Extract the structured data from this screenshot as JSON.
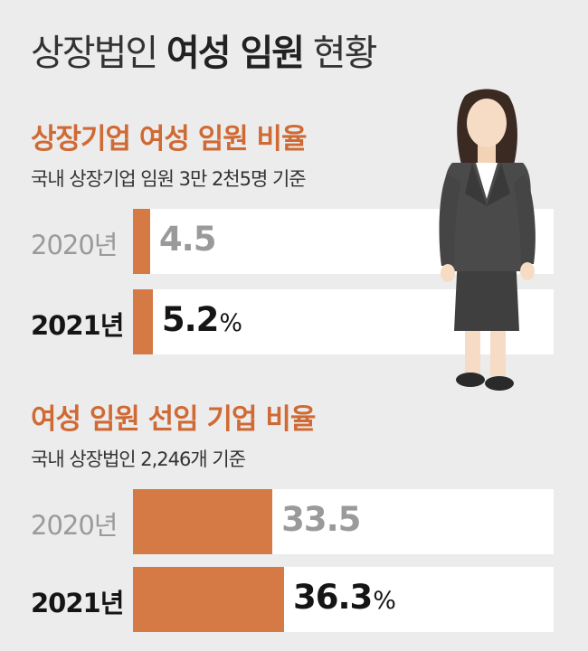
{
  "header": {
    "title_plain1": "상장법인 ",
    "title_bold": "여성 임원",
    "title_plain2": " 현황"
  },
  "chart_data": [
    {
      "type": "bar",
      "title": "상장기업 여성 임원 비율",
      "subtitle": "국내 상장기업 임원 3만 2천5명 기준",
      "categories": [
        "2020년",
        "2021년"
      ],
      "values": [
        4.5,
        5.2
      ],
      "value_labels": [
        "4.5",
        "5.2"
      ],
      "unit_labels": [
        "",
        "%"
      ],
      "xlim": [
        0,
        100
      ],
      "orientation": "horizontal"
    },
    {
      "type": "bar",
      "title": "여성 임원 선임 기업 비율",
      "subtitle": "국내 상장법인 2,246개 기준",
      "categories": [
        "2020년",
        "2021년"
      ],
      "values": [
        33.5,
        36.3
      ],
      "value_labels": [
        "33.5",
        "36.3"
      ],
      "unit_labels": [
        "",
        "%"
      ],
      "xlim": [
        0,
        100
      ],
      "orientation": "horizontal"
    }
  ],
  "colors": {
    "accent": "#d57a44",
    "title_accent": "#d06a35",
    "track": "#ffffff",
    "background": "#ececec",
    "previous_year_text": "#9a9a9a",
    "current_year_text": "#151515"
  },
  "illustration": "businesswoman-figure"
}
